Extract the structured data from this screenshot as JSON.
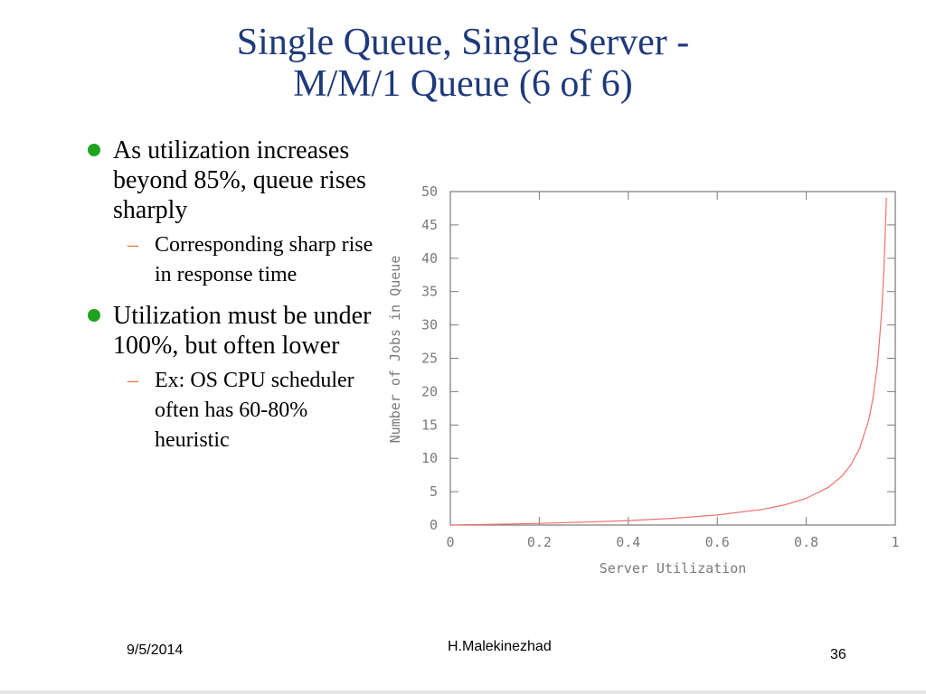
{
  "slide": {
    "title_line1": "Single Queue, Single Server -",
    "title_line2": "M/M/1 Queue (6 of 6)",
    "bullets": [
      {
        "text": "As utilization increases beyond 85%, queue rises sharply",
        "sub": "Corresponding sharp rise in response time"
      },
      {
        "text": "Utilization must be under 100%, but often lower",
        "sub": "Ex: OS CPU scheduler often has 60-80% heuristic"
      }
    ],
    "bullet_color": "#1fa31f",
    "sub_marker": "–",
    "sub_marker_color": "#e8752f"
  },
  "footer": {
    "date": "9/5/2014",
    "author": "H.Malekinezhad",
    "page": "36"
  },
  "chart_data": {
    "type": "line",
    "xlabel": "Server Utilization",
    "ylabel": "Number of Jobs in Queue",
    "xlim": [
      0,
      1
    ],
    "ylim": [
      0,
      50
    ],
    "x_ticks": [
      "0",
      "0.2",
      "0.4",
      "0.6",
      "0.8",
      "1"
    ],
    "y_ticks": [
      "0",
      "5",
      "10",
      "15",
      "20",
      "25",
      "30",
      "35",
      "40",
      "45",
      "50"
    ],
    "line_color": "#f07070",
    "axis_color": "#7a7a7a",
    "grid": false,
    "series": [
      {
        "x": [
          0.0,
          0.1,
          0.2,
          0.3,
          0.4,
          0.5,
          0.6,
          0.7,
          0.75,
          0.8,
          0.85,
          0.88,
          0.9,
          0.92,
          0.94,
          0.95,
          0.96,
          0.97,
          0.975,
          0.98
        ],
        "values": [
          0.0,
          0.11,
          0.25,
          0.43,
          0.67,
          1.0,
          1.5,
          2.33,
          3.0,
          4.0,
          5.67,
          7.33,
          9.0,
          11.5,
          15.67,
          19.0,
          24.0,
          32.33,
          39.0,
          49.0
        ]
      }
    ]
  }
}
